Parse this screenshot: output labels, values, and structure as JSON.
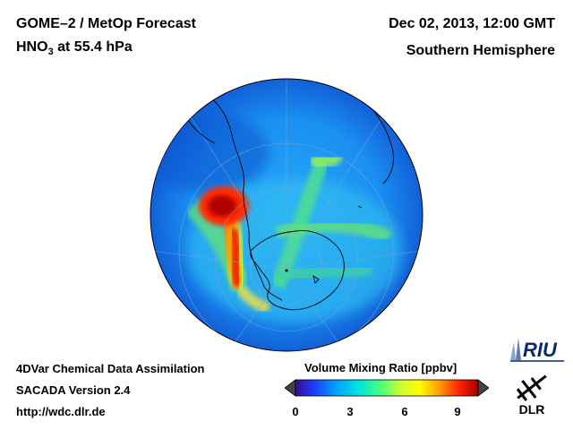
{
  "header": {
    "title": "GOME–2 / MetOp Forecast",
    "species_prefix": "HNO",
    "species_subscript": "3",
    "species_suffix": " at 55.4 hPa",
    "datetime": "Dec 02, 2013, 12:00 GMT",
    "region": "Southern Hemisphere"
  },
  "footer": {
    "line1": "4DVar Chemical Data Assimilation",
    "line2": "SACADA Version 2.4",
    "line3": "http://wdc.dlr.de"
  },
  "colorbar": {
    "title": "Volume Mixing Ratio [ppbv]",
    "ticks": [
      "0",
      "3",
      "6",
      "9"
    ],
    "colors": [
      "#3a0a8a",
      "#1e3cff",
      "#00a0ff",
      "#00e0e0",
      "#40ff80",
      "#d0ff30",
      "#ffff00",
      "#ff9000",
      "#ff2000",
      "#a00000"
    ]
  },
  "logos": {
    "riu_text": "RIU",
    "dlr_text": "DLR"
  },
  "colors": {
    "ocean_blue": "#1a8ff0",
    "background_blue": "#2a9ef5",
    "high_red": "#cc0a0a"
  }
}
